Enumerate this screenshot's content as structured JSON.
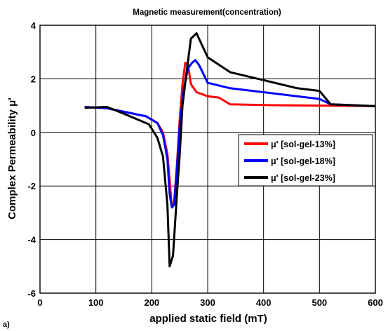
{
  "panel_label": "a)",
  "chart_data": {
    "type": "line",
    "title": "Magnetic measurement(concentration)",
    "xlabel": "applied static field (mT)",
    "ylabel": "Complex Permeability  μ'",
    "xlim": [
      0,
      600
    ],
    "ylim": [
      -6,
      4
    ],
    "xticks": [
      0,
      100,
      200,
      300,
      400,
      500,
      600
    ],
    "yticks": [
      -6,
      -4,
      -2,
      0,
      2,
      4
    ],
    "grid": true,
    "legend_position": "center-right",
    "series": [
      {
        "name": "μ' [sol-gel-13%]",
        "color": "#ff0000",
        "x": [
          80,
          120,
          190,
          210,
          220,
          228,
          232,
          236,
          240,
          245,
          250,
          255,
          260,
          265,
          270,
          280,
          300,
          320,
          340,
          400,
          500,
          520,
          600
        ],
        "y": [
          0.95,
          0.9,
          0.6,
          0.35,
          0.0,
          -0.8,
          -1.8,
          -2.8,
          -2.6,
          -1.2,
          0.5,
          1.8,
          2.6,
          2.5,
          1.8,
          1.5,
          1.35,
          1.3,
          1.05,
          1.02,
          1.0,
          1.0,
          0.98
        ]
      },
      {
        "name": "μ' [sol-gel-18%]",
        "color": "#0000ff",
        "x": [
          80,
          120,
          190,
          210,
          220,
          228,
          232,
          236,
          240,
          245,
          250,
          258,
          265,
          272,
          278,
          285,
          300,
          340,
          400,
          500,
          520,
          600
        ],
        "y": [
          0.95,
          0.9,
          0.6,
          0.35,
          -0.1,
          -1.0,
          -2.3,
          -2.8,
          -2.7,
          -1.3,
          0.3,
          1.7,
          2.4,
          2.6,
          2.7,
          2.5,
          1.85,
          1.65,
          1.5,
          1.25,
          1.05,
          0.98
        ]
      },
      {
        "name": "μ' [sol-gel-23%]",
        "color": "#000000",
        "x": [
          80,
          120,
          150,
          195,
          210,
          220,
          228,
          232,
          238,
          245,
          250,
          255,
          262,
          270,
          280,
          300,
          340,
          400,
          460,
          500,
          520,
          600
        ],
        "y": [
          0.92,
          0.95,
          0.7,
          0.3,
          -0.2,
          -0.9,
          -2.7,
          -5.0,
          -4.6,
          -2.3,
          -0.8,
          1.0,
          2.2,
          3.5,
          3.7,
          2.8,
          2.25,
          1.95,
          1.65,
          1.55,
          1.05,
          0.98
        ]
      }
    ]
  }
}
